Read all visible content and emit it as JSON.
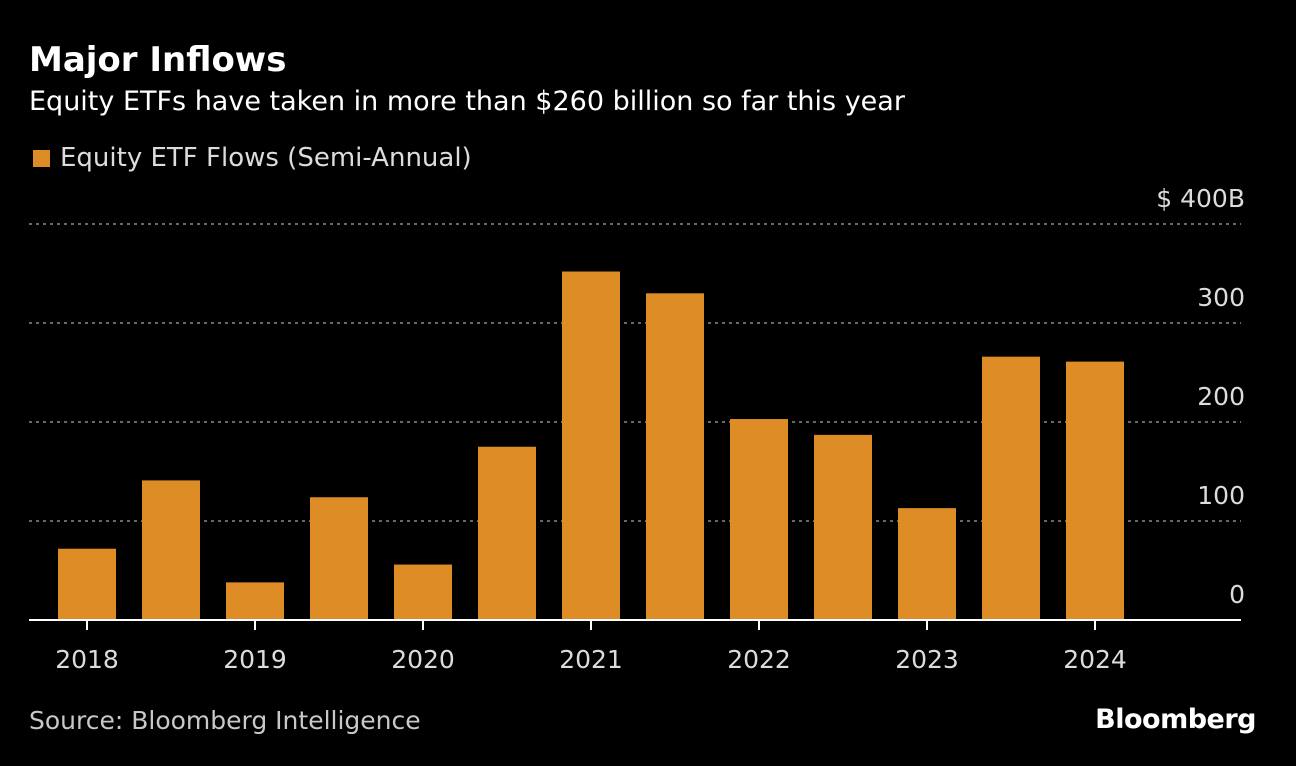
{
  "header": {
    "title": "Major Inflows",
    "subtitle": "Equity ETFs have taken in more than $260 billion so far this year"
  },
  "legend": {
    "label": "Equity ETF Flows (Semi-Annual)"
  },
  "footer": {
    "source": "Source: Bloomberg Intelligence",
    "brand": "Bloomberg"
  },
  "colors": {
    "bar": "#de8c26",
    "gridline": "#8a8a8a",
    "axis": "#ffffff",
    "tick_label": "#dcdcdc"
  },
  "chart_data": {
    "type": "bar",
    "categories": [
      "2018 H1",
      "2018 H2",
      "2019 H1",
      "2019 H2",
      "2020 H1",
      "2020 H2",
      "2021 H1",
      "2021 H2",
      "2022 H1",
      "2022 H2",
      "2023 H1",
      "2023 H2",
      "2024 H1"
    ],
    "series": [
      {
        "name": "Equity ETF Flows (Semi-Annual)",
        "values": [
          72,
          141,
          38,
          124,
          56,
          175,
          352,
          330,
          203,
          187,
          113,
          266,
          261
        ]
      }
    ],
    "x_tick_labels": [
      "2018",
      "2019",
      "2020",
      "2021",
      "2022",
      "2023",
      "2024"
    ],
    "y_ticks": [
      0,
      100,
      200,
      300,
      400
    ],
    "y_tick_labels": [
      "0",
      "100",
      "200",
      "300",
      "$ 400B"
    ],
    "ylim": [
      0,
      400
    ],
    "y_axis_side": "right",
    "grid": true,
    "grid_style": "dotted",
    "legend_position": "top-left"
  }
}
